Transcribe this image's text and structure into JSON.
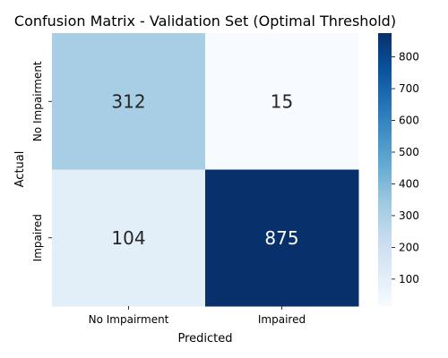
{
  "chart_data": {
    "type": "heatmap",
    "title": "Confusion Matrix - Validation Set (Optimal Threshold)",
    "xlabel": "Predicted",
    "ylabel": "Actual",
    "x_categories": [
      "No Impairment",
      "Impaired"
    ],
    "y_categories": [
      "No Impairment",
      "Impaired"
    ],
    "values": [
      [
        312,
        15
      ],
      [
        104,
        875
      ]
    ],
    "colormap": "Blues",
    "colorbar": {
      "range": [
        15,
        875
      ],
      "ticks": [
        100,
        200,
        300,
        400,
        500,
        600,
        700,
        800
      ]
    },
    "grid": false,
    "legend": "colorbar-right"
  }
}
